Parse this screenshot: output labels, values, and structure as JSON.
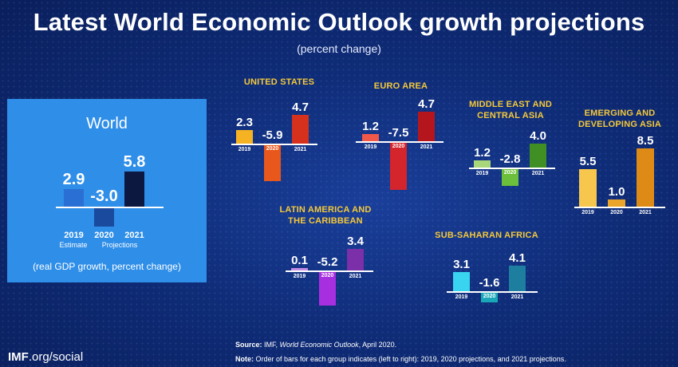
{
  "header": {
    "title": "Latest World Economic Outlook growth projections",
    "subtitle": "(percent change)"
  },
  "footer": {
    "source_label": "Source:",
    "source_pre": "IMF,",
    "source_title": "World Economic Outlook",
    "source_post": ", April 2020.",
    "note_label": "Note:",
    "note_text": "Order of bars for each group indicates (left to right): 2019, 2020 projections, and 2021 projections."
  },
  "branding": {
    "imf_bold": "IMF",
    "imf_rest": ".org/social"
  },
  "world_panel": {
    "footnote": "(real GDP growth, percent change)",
    "sublabels": [
      "Estimate",
      "Projections"
    ]
  },
  "chart_data": {
    "type": "bar",
    "categories": [
      "2019",
      "2020",
      "2021"
    ],
    "groups": [
      {
        "name": "World",
        "values": [
          2.9,
          -3.0,
          5.8
        ],
        "colors": [
          "#2a6fd3",
          "#1a4a9e",
          "#0d1840"
        ]
      },
      {
        "name": "UNITED STATES",
        "values": [
          2.3,
          -5.9,
          4.7
        ],
        "colors": [
          "#f5b324",
          "#e8571c",
          "#d6311c"
        ]
      },
      {
        "name": "EURO AREA",
        "values": [
          1.2,
          -7.5,
          4.7
        ],
        "colors": [
          "#f0584a",
          "#d3252b",
          "#b5161d"
        ]
      },
      {
        "name": "MIDDLE EAST AND CENTRAL ASIA",
        "values": [
          1.2,
          -2.8,
          4.0
        ],
        "colors": [
          "#a8d67a",
          "#6bbf3a",
          "#3f8f25"
        ]
      },
      {
        "name": "EMERGING AND DEVELOPING ASIA",
        "values": [
          5.5,
          1.0,
          8.5
        ],
        "colors": [
          "#f7c64c",
          "#eaa52a",
          "#dd8b16"
        ]
      },
      {
        "name": "LATIN AMERICA AND THE CARIBBEAN",
        "values": [
          0.1,
          -5.2,
          3.4
        ],
        "colors": [
          "#c58ce6",
          "#a82fe0",
          "#7b2fa8"
        ]
      },
      {
        "name": "SUB-SAHARAN AFRICA",
        "values": [
          3.1,
          -1.6,
          4.1
        ],
        "colors": [
          "#39d4f0",
          "#1aa8b8",
          "#1d7ea0"
        ]
      }
    ]
  }
}
